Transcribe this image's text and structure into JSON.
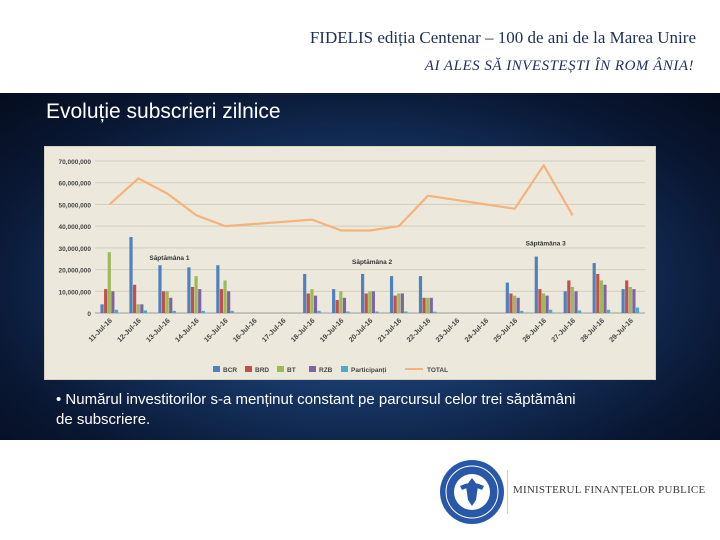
{
  "header": {
    "title": "FIDELIS ediția Centenar – 100 de ani de la Marea Unire",
    "subtitle": "AI ALES SĂ INVESTEȘTI ÎN ROM ÂNIA!"
  },
  "slide_title": "Evoluție subscrieri zilnice",
  "bullet": "• Numărul investitorilor s-a menținut constant pe parcursul celor trei săptămâni de subscriere.",
  "footer": {
    "ministry": "MINISTERUL FINANȚELOR PUBLICE",
    "logo_ring_text": "GUVERNUL ROMÂNIEI"
  },
  "colors": {
    "BCR": "#4f81bd",
    "BRD": "#c0504d",
    "BT": "#9bbb59",
    "RZB": "#8064a2",
    "Participanti": "#4bacc6",
    "TOTAL": "#f5b27c"
  },
  "chart_data": {
    "type": "bar",
    "title": "",
    "xlabel": "",
    "ylabel": "",
    "ylim": [
      0,
      70000000
    ],
    "yticks": [
      "0",
      "10,000,000",
      "20,000,000",
      "30,000,000",
      "40,000,000",
      "50,000,000",
      "60,000,000",
      "70,000,000"
    ],
    "categories": [
      "11-Jul-16",
      "12-Jul-16",
      "13-Jul-16",
      "14-Jul-16",
      "15-Jul-16",
      "16-Jul-16",
      "17-Jul-16",
      "18-Jul-16",
      "19-Jul-16",
      "20-Jul-16",
      "21-Jul-16",
      "22-Jul-16",
      "23-Jul-16",
      "24-Jul-16",
      "25-Jul-16",
      "26-Jul-16",
      "27-Jul-16",
      "28-Jul-16",
      "29-Jul-16"
    ],
    "series": [
      {
        "name": "BCR",
        "values": [
          4000000,
          35000000,
          22000000,
          21000000,
          22000000,
          0,
          0,
          18000000,
          11000000,
          18000000,
          17000000,
          17000000,
          0,
          0,
          14000000,
          26000000,
          10000000,
          23000000,
          11000000
        ]
      },
      {
        "name": "BRD",
        "values": [
          11000000,
          13000000,
          10000000,
          12000000,
          11000000,
          0,
          0,
          9000000,
          6000000,
          9000000,
          8000000,
          7000000,
          0,
          0,
          9000000,
          11000000,
          15000000,
          18000000,
          15000000
        ]
      },
      {
        "name": "BT",
        "values": [
          28000000,
          4000000,
          10000000,
          17000000,
          15000000,
          0,
          0,
          11000000,
          10000000,
          10000000,
          9000000,
          7000000,
          0,
          0,
          8000000,
          9000000,
          12000000,
          15000000,
          12000000
        ]
      },
      {
        "name": "RZB",
        "values": [
          10000000,
          4000000,
          7000000,
          11000000,
          10000000,
          0,
          0,
          8000000,
          7000000,
          10000000,
          9000000,
          7000000,
          0,
          0,
          7000000,
          8000000,
          10000000,
          13000000,
          11000000
        ]
      },
      {
        "name": "Participanți",
        "values": [
          1500000,
          1200000,
          1000000,
          1000000,
          1000000,
          0,
          0,
          1000000,
          700000,
          700000,
          700000,
          600000,
          0,
          0,
          1000000,
          1500000,
          1200000,
          1500000,
          2500000
        ]
      },
      {
        "name": "TOTAL",
        "type": "line",
        "values": [
          50000000,
          62000000,
          55000000,
          45000000,
          40000000,
          41000000,
          42000000,
          43000000,
          38000000,
          38000000,
          40000000,
          54000000,
          52000000,
          50000000,
          48000000,
          68000000,
          45000000,
          null,
          null
        ]
      }
    ],
    "annotations": [
      {
        "text": "Săptămâna 1",
        "category": "13-Jul-16",
        "y": 24500000
      },
      {
        "text": "Săptămâna 2",
        "category": "20-Jul-16",
        "y": 22500000
      },
      {
        "text": "Săptămâna 3",
        "category": "26-Jul-16",
        "y": 31000000
      }
    ],
    "legend": [
      "BCR",
      "BRD",
      "BT",
      "RZB",
      "Participanți",
      "TOTAL"
    ],
    "legend_position": "bottom",
    "grid": true
  }
}
